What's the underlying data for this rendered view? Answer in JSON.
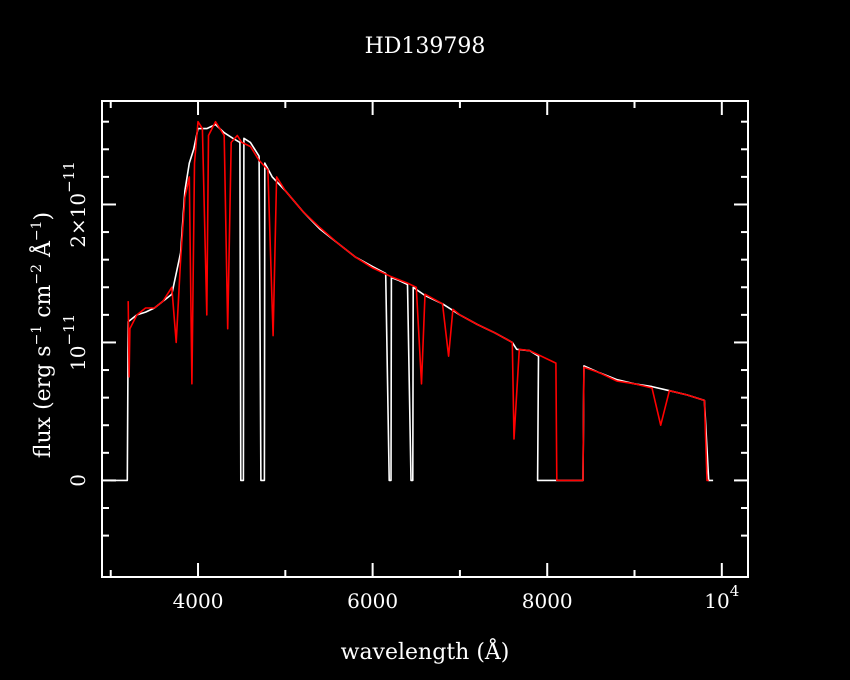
{
  "colors": {
    "background": "#000000",
    "axes": "#ffffff",
    "series_white": "#ffffff",
    "series_red": "#ff0000"
  },
  "chart_data": {
    "type": "line",
    "title": "HD139798",
    "xlabel": "wavelength (Å)",
    "ylabel": {
      "pre": "flux (erg s",
      "sup1": "−1",
      "mid1": " cm",
      "sup2": "−2",
      "mid2": " Å",
      "sup3": "−1",
      "post": ")"
    },
    "xlim": [
      2900,
      10300
    ],
    "ylim": [
      -7e-12,
      2.75e-11
    ],
    "x_ticks": [
      {
        "value": 4000,
        "label": "4000"
      },
      {
        "value": 6000,
        "label": "6000"
      },
      {
        "value": 8000,
        "label": "8000"
      },
      {
        "value": 10000,
        "label": "10",
        "sup": "4"
      }
    ],
    "y_ticks": [
      {
        "value": 0,
        "label": "0"
      },
      {
        "value": 1e-11,
        "label": "10",
        "sup": "−11"
      },
      {
        "value": 2e-11,
        "label": "2×10",
        "sup": "−11"
      }
    ],
    "series": [
      {
        "color": "white",
        "points": [
          [
            3000,
            0
          ],
          [
            3190,
            0
          ],
          [
            3200,
            1.15e-11
          ],
          [
            3300,
            1.2e-11
          ],
          [
            3400,
            1.22e-11
          ],
          [
            3500,
            1.25e-11
          ],
          [
            3600,
            1.3e-11
          ],
          [
            3700,
            1.35e-11
          ],
          [
            3800,
            1.65e-11
          ],
          [
            3850,
            2.1e-11
          ],
          [
            3900,
            2.3e-11
          ],
          [
            3950,
            2.4e-11
          ],
          [
            4000,
            2.55e-11
          ],
          [
            4100,
            2.55e-11
          ],
          [
            4200,
            2.58e-11
          ],
          [
            4300,
            2.52e-11
          ],
          [
            4400,
            2.48e-11
          ],
          [
            4480,
            2.45e-11
          ],
          [
            4490,
            0
          ],
          [
            4520,
            0
          ],
          [
            4525,
            2.48e-11
          ],
          [
            4600,
            2.45e-11
          ],
          [
            4700,
            2.35e-11
          ],
          [
            4720,
            0
          ],
          [
            4760,
            0
          ],
          [
            4765,
            2.3e-11
          ],
          [
            4850,
            2.2e-11
          ],
          [
            5000,
            2.1e-11
          ],
          [
            5200,
            1.95e-11
          ],
          [
            5400,
            1.82e-11
          ],
          [
            5600,
            1.72e-11
          ],
          [
            5800,
            1.62e-11
          ],
          [
            6000,
            1.55e-11
          ],
          [
            6150,
            1.5e-11
          ],
          [
            6190,
            0
          ],
          [
            6210,
            0
          ],
          [
            6215,
            1.47e-11
          ],
          [
            6300,
            1.45e-11
          ],
          [
            6400,
            1.42e-11
          ],
          [
            6440,
            0
          ],
          [
            6460,
            0
          ],
          [
            6465,
            1.4e-11
          ],
          [
            6600,
            1.34e-11
          ],
          [
            6800,
            1.28e-11
          ],
          [
            7000,
            1.2e-11
          ],
          [
            7200,
            1.13e-11
          ],
          [
            7400,
            1.07e-11
          ],
          [
            7600,
            1e-11
          ],
          [
            7650,
            9.5e-12
          ],
          [
            7800,
            9.4e-12
          ],
          [
            7900,
            9e-12
          ],
          [
            7890,
            0
          ],
          [
            8100,
            0
          ],
          [
            8300,
            0
          ],
          [
            8410,
            0
          ],
          [
            8420,
            8.3e-12
          ],
          [
            8600,
            7.8e-12
          ],
          [
            8800,
            7.3e-12
          ],
          [
            9000,
            7e-12
          ],
          [
            9200,
            6.8e-12
          ],
          [
            9400,
            6.5e-12
          ],
          [
            9600,
            6.2e-12
          ],
          [
            9800,
            5.8e-12
          ],
          [
            9850,
            0
          ],
          [
            9900,
            0
          ]
        ]
      },
      {
        "color": "red",
        "points": [
          [
            3200,
            1.3e-11
          ],
          [
            3210,
            7.5e-12
          ],
          [
            3220,
            1.1e-11
          ],
          [
            3300,
            1.2e-11
          ],
          [
            3400,
            1.25e-11
          ],
          [
            3500,
            1.25e-11
          ],
          [
            3600,
            1.3e-11
          ],
          [
            3700,
            1.4e-11
          ],
          [
            3750,
            1e-11
          ],
          [
            3800,
            1.6e-11
          ],
          [
            3850,
            2.05e-11
          ],
          [
            3900,
            2.2e-11
          ],
          [
            3930,
            7e-12
          ],
          [
            3960,
            2.3e-11
          ],
          [
            4000,
            2.6e-11
          ],
          [
            4050,
            2.55e-11
          ],
          [
            4100,
            1.2e-11
          ],
          [
            4120,
            2.5e-11
          ],
          [
            4200,
            2.6e-11
          ],
          [
            4300,
            2.5e-11
          ],
          [
            4340,
            1.1e-11
          ],
          [
            4380,
            2.45e-11
          ],
          [
            4450,
            2.5e-11
          ],
          [
            4500,
            2.45e-11
          ],
          [
            4600,
            2.42e-11
          ],
          [
            4700,
            2.32e-11
          ],
          [
            4800,
            2.25e-11
          ],
          [
            4860,
            1.05e-11
          ],
          [
            4900,
            2.2e-11
          ],
          [
            5000,
            2.1e-11
          ],
          [
            5200,
            1.95e-11
          ],
          [
            5400,
            1.83e-11
          ],
          [
            5600,
            1.72e-11
          ],
          [
            5800,
            1.62e-11
          ],
          [
            6000,
            1.54e-11
          ],
          [
            6200,
            1.48e-11
          ],
          [
            6400,
            1.43e-11
          ],
          [
            6500,
            1.4e-11
          ],
          [
            6560,
            7e-12
          ],
          [
            6600,
            1.35e-11
          ],
          [
            6800,
            1.28e-11
          ],
          [
            6870,
            9e-12
          ],
          [
            6920,
            1.24e-11
          ],
          [
            7000,
            1.2e-11
          ],
          [
            7200,
            1.13e-11
          ],
          [
            7400,
            1.07e-11
          ],
          [
            7600,
            1e-11
          ],
          [
            7620,
            3e-12
          ],
          [
            7680,
            9.5e-12
          ],
          [
            7800,
            9.4e-12
          ],
          [
            8000,
            8.8e-12
          ],
          [
            8100,
            8.5e-12
          ],
          [
            8110,
            0
          ],
          [
            8410,
            0
          ],
          [
            8420,
            8.2e-12
          ],
          [
            8600,
            7.8e-12
          ],
          [
            8800,
            7.2e-12
          ],
          [
            9000,
            7e-12
          ],
          [
            9200,
            6.7e-12
          ],
          [
            9300,
            4e-12
          ],
          [
            9400,
            6.5e-12
          ],
          [
            9600,
            6.2e-12
          ],
          [
            9800,
            5.8e-12
          ],
          [
            9830,
            0
          ],
          [
            9850,
            0
          ]
        ]
      }
    ]
  }
}
